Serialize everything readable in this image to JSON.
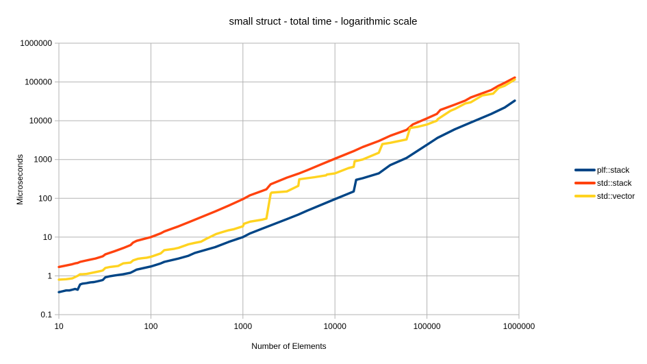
{
  "chart_data": {
    "type": "line",
    "title": "small struct - total time - logarithmic scale",
    "xlabel": "Number of Elements",
    "ylabel": "Microseconds",
    "x_scale": "log",
    "y_scale": "log",
    "xlim": [
      10,
      1000000
    ],
    "ylim": [
      0.1,
      1000000
    ],
    "x_ticks": [
      "10",
      "100",
      "1000",
      "10000",
      "100000",
      "1000000"
    ],
    "y_ticks": [
      "0.1",
      "1",
      "10",
      "100",
      "1000",
      "10000",
      "100000",
      "1000000"
    ],
    "grid": true,
    "legend_position": "right",
    "series": [
      {
        "name": "plf::stack",
        "color": "#004586",
        "x": [
          10,
          11,
          12,
          13,
          14,
          15,
          16,
          17,
          18,
          20,
          22,
          24,
          26,
          28,
          30,
          32,
          34,
          36,
          40,
          50,
          60,
          64,
          70,
          100,
          128,
          140,
          200,
          256,
          300,
          500,
          700,
          1000,
          1200,
          2000,
          3000,
          4000,
          5000,
          10000,
          16000,
          17000,
          20000,
          30000,
          40000,
          60000,
          100000,
          130000,
          200000,
          300000,
          500000,
          700000,
          900000
        ],
        "y": [
          0.38,
          0.4,
          0.42,
          0.42,
          0.44,
          0.46,
          0.44,
          0.6,
          0.63,
          0.65,
          0.68,
          0.69,
          0.72,
          0.75,
          0.78,
          0.92,
          0.95,
          0.98,
          1.02,
          1.1,
          1.2,
          1.3,
          1.45,
          1.75,
          2.1,
          2.3,
          2.8,
          3.3,
          3.9,
          5.5,
          7.5,
          10,
          12.5,
          20,
          29,
          38,
          48,
          95,
          150,
          300,
          330,
          440,
          720,
          1100,
          2400,
          3600,
          6000,
          9000,
          15000,
          22000,
          33000
        ]
      },
      {
        "name": "std::stack",
        "color": "#ff420e",
        "x": [
          10,
          12,
          14,
          15,
          16,
          17,
          20,
          25,
          30,
          32,
          40,
          50,
          60,
          64,
          70,
          100,
          128,
          140,
          200,
          256,
          300,
          500,
          700,
          1000,
          1200,
          1800,
          1900,
          2000,
          3000,
          4000,
          5000,
          7000,
          10000,
          16000,
          20000,
          30000,
          40000,
          60000,
          70000,
          100000,
          128000,
          140000,
          200000,
          260000,
          300000,
          500000,
          600000,
          700000,
          900000
        ],
        "y": [
          1.7,
          1.85,
          2.0,
          2.1,
          2.15,
          2.3,
          2.5,
          2.8,
          3.2,
          3.6,
          4.3,
          5.2,
          6.2,
          7.2,
          8.0,
          10,
          12.5,
          14,
          19,
          24,
          28,
          46,
          65,
          95,
          120,
          170,
          200,
          230,
          340,
          430,
          530,
          740,
          1050,
          1650,
          2100,
          3000,
          4100,
          5800,
          8000,
          11500,
          15000,
          19000,
          26000,
          33000,
          40000,
          62000,
          80000,
          95000,
          130000
        ]
      },
      {
        "name": "std::vector",
        "color": "#ffd320",
        "x": [
          10,
          12,
          13,
          14,
          16,
          17,
          18,
          20,
          25,
          28,
          30,
          32,
          36,
          40,
          44,
          50,
          60,
          64,
          72,
          80,
          90,
          100,
          128,
          140,
          180,
          200,
          256,
          300,
          350,
          400,
          512,
          600,
          700,
          800,
          1000,
          1024,
          1200,
          1600,
          1800,
          2000,
          2048,
          3000,
          4000,
          4096,
          6000,
          8000,
          8192,
          10000,
          14000,
          16000,
          16384,
          20000,
          30000,
          32768,
          40000,
          60000,
          65536,
          80000,
          100000,
          128000,
          131072,
          180000,
          200000,
          262144,
          300000,
          400000,
          524288,
          600000,
          700000,
          900000
        ],
        "y": [
          0.8,
          0.82,
          0.84,
          0.86,
          1.0,
          1.1,
          1.1,
          1.12,
          1.25,
          1.32,
          1.38,
          1.6,
          1.7,
          1.75,
          1.8,
          2.1,
          2.2,
          2.5,
          2.75,
          2.85,
          2.95,
          3.1,
          3.8,
          4.6,
          5.0,
          5.3,
          6.5,
          7.1,
          7.6,
          9.0,
          12,
          13.5,
          15,
          16,
          19,
          22,
          25,
          28,
          30,
          130,
          140,
          150,
          210,
          310,
          350,
          390,
          410,
          440,
          600,
          650,
          900,
          1000,
          1500,
          2500,
          2700,
          3300,
          6500,
          7000,
          8000,
          10000,
          11000,
          18000,
          20000,
          28000,
          30000,
          45000,
          50000,
          70000,
          80000,
          115000
        ]
      }
    ]
  }
}
